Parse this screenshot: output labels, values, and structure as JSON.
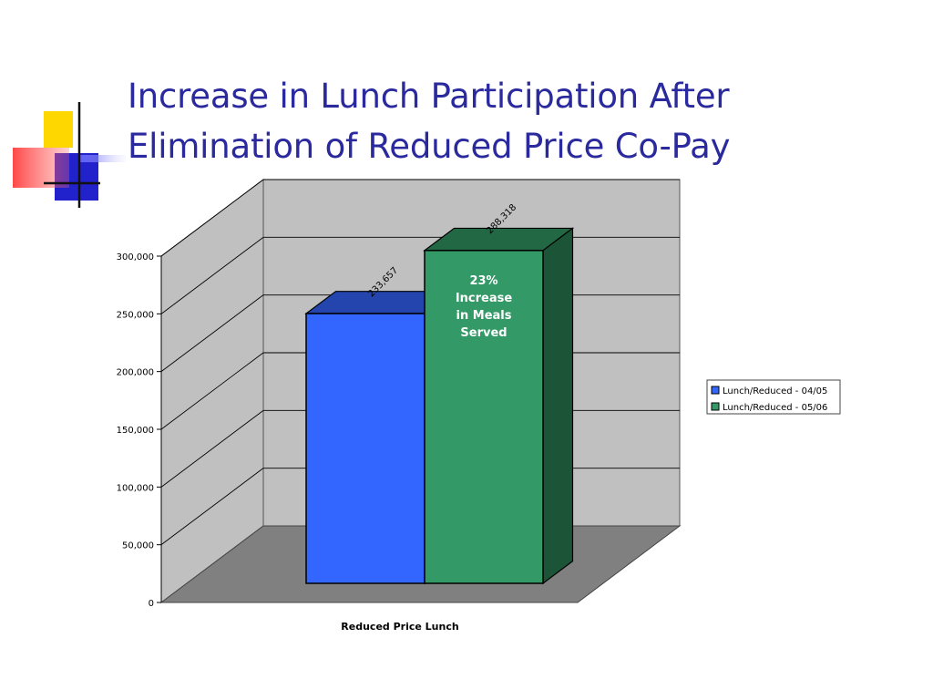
{
  "slide": {
    "title_line1": "Increase in Lunch Participation After",
    "title_line2": "Elimination of Reduced Price Co-Pay"
  },
  "colors": {
    "title": "#2a2a9e",
    "wall": "#c0c0c0",
    "floor": "#808080",
    "series_1": "#3366ff",
    "series_2": "#339966"
  },
  "chart_data": {
    "type": "bar",
    "three_d": true,
    "categories": [
      "Reduced Price Lunch"
    ],
    "xlabel": "Reduced Price Lunch",
    "ylabel": "",
    "ylim": [
      0,
      300000
    ],
    "yticks": [
      0,
      50000,
      100000,
      150000,
      200000,
      250000,
      300000
    ],
    "ytick_labels": [
      "0",
      "50,000",
      "100,000",
      "150,000",
      "200,000",
      "250,000",
      "300,000"
    ],
    "grid": true,
    "legend_position": "right",
    "series": [
      {
        "name": "Lunch/Reduced - 04/05",
        "values": [
          233657
        ],
        "label": "233,657"
      },
      {
        "name": "Lunch/Reduced - 05/06",
        "values": [
          288318
        ],
        "label": "288,318"
      }
    ],
    "annotation": "23% Increase in Meals Served"
  }
}
